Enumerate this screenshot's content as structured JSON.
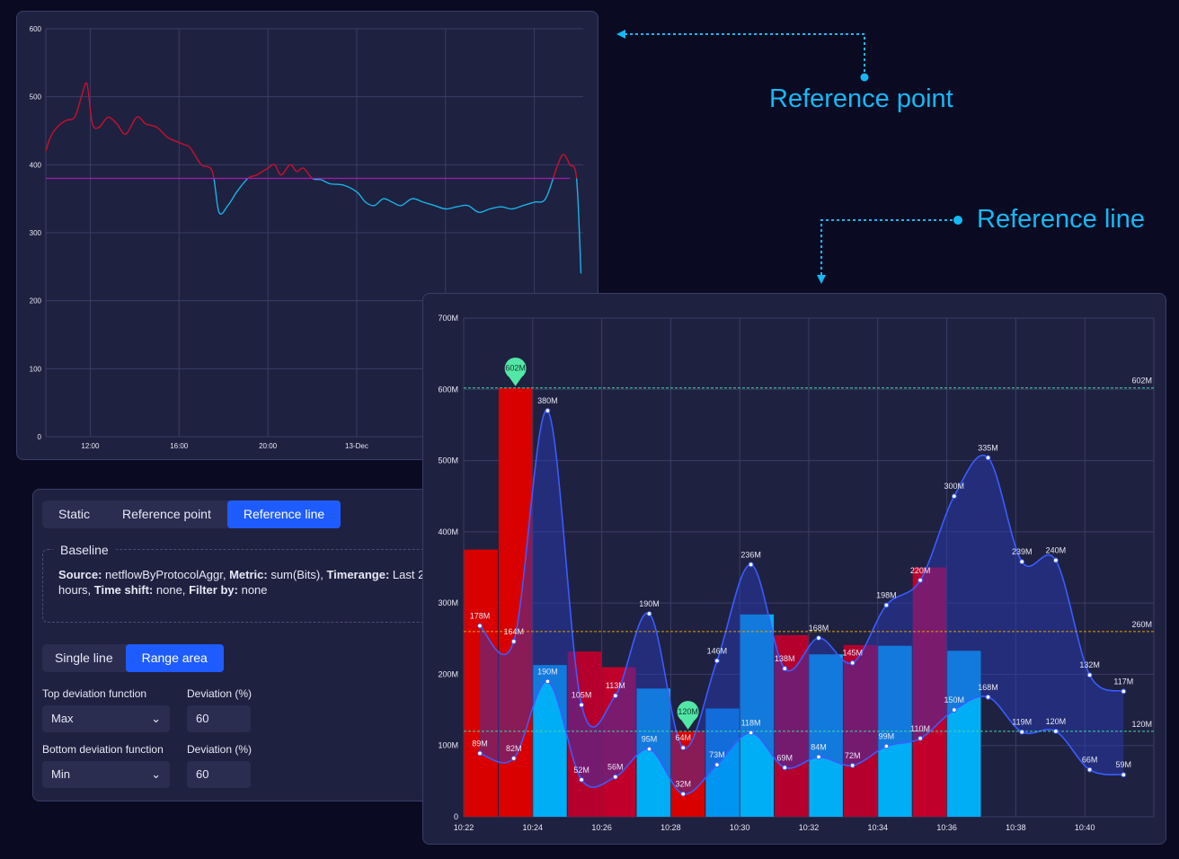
{
  "callouts": {
    "reference_point": "Reference point",
    "reference_line": "Reference line"
  },
  "controls": {
    "tabs": [
      "Static",
      "Reference point",
      "Reference line"
    ],
    "active_tab": 2,
    "baseline": {
      "title": "Baseline",
      "source_label": "Source:",
      "source_value": "netflowByProtocolAggr,",
      "metric_label": "Metric:",
      "metric_value": "sum(Bits),",
      "timerange_label": "Timerange:",
      "timerange_value": "Last 24 hours,",
      "timeshift_label": "Time shift:",
      "timeshift_value": "none,",
      "filter_label": "Filter by:",
      "filter_value": "none"
    },
    "mode_tabs": [
      "Single line",
      "Range area"
    ],
    "active_mode": 1,
    "top_function_label": "Top deviation function",
    "top_function_value": "Max",
    "top_deviation_label": "Deviation (%)",
    "top_deviation_value": "60",
    "bottom_function_label": "Bottom deviation function",
    "bottom_function_value": "Min",
    "bottom_deviation_label": "Deviation (%)",
    "bottom_deviation_value": "60"
  },
  "chart_data": [
    {
      "type": "line",
      "ylim": [
        0,
        600
      ],
      "yticks": [
        0,
        100,
        200,
        300,
        400,
        500,
        600
      ],
      "xtick_labels": [
        "12:00",
        "16:00",
        "20:00",
        "13-Dec"
      ],
      "reference_value": 380,
      "colors": {
        "above": "#c8102e",
        "below": "#1ab3e8",
        "reference": "#a21caf"
      },
      "series": [
        {
          "x": [
            10.0,
            10.2,
            10.5,
            10.9,
            11.3,
            11.6,
            11.8,
            11.9,
            12.1,
            12.4,
            12.8,
            13.2,
            13.6,
            14.1,
            14.5,
            15.0,
            15.5,
            16.2,
            16.5,
            17.0,
            17.5,
            17.8,
            18.2,
            18.6,
            19.1,
            19.5,
            20.0,
            20.3,
            20.6,
            21.0,
            21.3,
            21.6,
            22.0,
            22.4,
            22.8,
            23.4,
            24.0,
            24.4,
            24.8,
            25.2,
            25.6,
            26.0,
            26.5,
            27.0,
            27.5,
            28.0,
            28.5,
            29.0,
            29.5,
            30.0,
            30.5,
            31.0,
            31.5,
            32.0,
            32.5,
            33.0,
            33.3,
            33.6,
            33.9,
            34.1
          ],
          "y": [
            420,
            440,
            455,
            465,
            470,
            500,
            520,
            510,
            460,
            455,
            470,
            460,
            445,
            470,
            460,
            455,
            440,
            430,
            425,
            400,
            390,
            330,
            340,
            360,
            380,
            385,
            395,
            400,
            385,
            400,
            390,
            395,
            380,
            378,
            372,
            370,
            360,
            345,
            340,
            350,
            345,
            340,
            350,
            345,
            340,
            335,
            338,
            340,
            330,
            335,
            338,
            335,
            340,
            345,
            350,
            395,
            415,
            400,
            380,
            240
          ]
        }
      ]
    },
    {
      "type": "bar",
      "ylim": [
        0,
        700
      ],
      "ytick_labels": [
        "0",
        "100M",
        "200M",
        "300M",
        "400M",
        "500M",
        "600M",
        "700M"
      ],
      "xtick_labels": [
        "10:22",
        "10:24",
        "10:26",
        "10:28",
        "10:30",
        "10:32",
        "10:34",
        "10:36",
        "10:38",
        "10:40"
      ],
      "bars": [
        375,
        602,
        213,
        232,
        210,
        180,
        120,
        152,
        284,
        255,
        228,
        241,
        240,
        350,
        233
      ],
      "bar_colors": [
        "#d90000",
        "#d90000",
        "#00aef5",
        "#b5002e",
        "#c0002a",
        "#00aef5",
        "#d90000",
        "#0095f0",
        "#00aef5",
        "#b5002e",
        "#00aef5",
        "#b5002e",
        "#00aef5",
        "#c0002a",
        "#00aef5"
      ],
      "band_top": [
        268,
        246,
        570,
        157,
        170,
        285,
        97,
        219,
        354,
        208,
        251,
        216,
        297,
        332,
        450,
        504,
        358,
        360,
        199,
        176
      ],
      "band_top_labels": [
        "178M",
        "164M",
        "380M",
        "105M",
        "113M",
        "190M",
        "64M",
        "146M",
        "236M",
        "138M",
        "168M",
        "145M",
        "198M",
        "220M",
        "300M",
        "335M",
        "239M",
        "240M",
        "132M",
        "117M"
      ],
      "band_bottom": [
        89,
        82,
        190,
        52,
        56,
        95,
        32,
        73,
        118,
        69,
        84,
        72,
        99,
        110,
        150,
        168,
        119,
        120,
        66,
        59
      ],
      "band_bottom_labels": [
        "89M",
        "82M",
        "190M",
        "52M",
        "56M",
        "95M",
        "32M",
        "73M",
        "118M",
        "69M",
        "84M",
        "72M",
        "99M",
        "110M",
        "150M",
        "168M",
        "119M",
        "120M",
        "66M",
        "59M"
      ],
      "reference_lines": [
        {
          "value": 602,
          "label": "602M",
          "color": "#3dd9a4"
        },
        {
          "value": 260,
          "label": "260M",
          "color": "#e0a000"
        },
        {
          "value": 120,
          "label": "120M",
          "color": "#3dd9a4"
        }
      ],
      "markers": [
        {
          "bar_index": 1,
          "value": 602,
          "label": "602M"
        },
        {
          "bar_index": 6,
          "value": 120,
          "label": "120M"
        }
      ]
    }
  ]
}
